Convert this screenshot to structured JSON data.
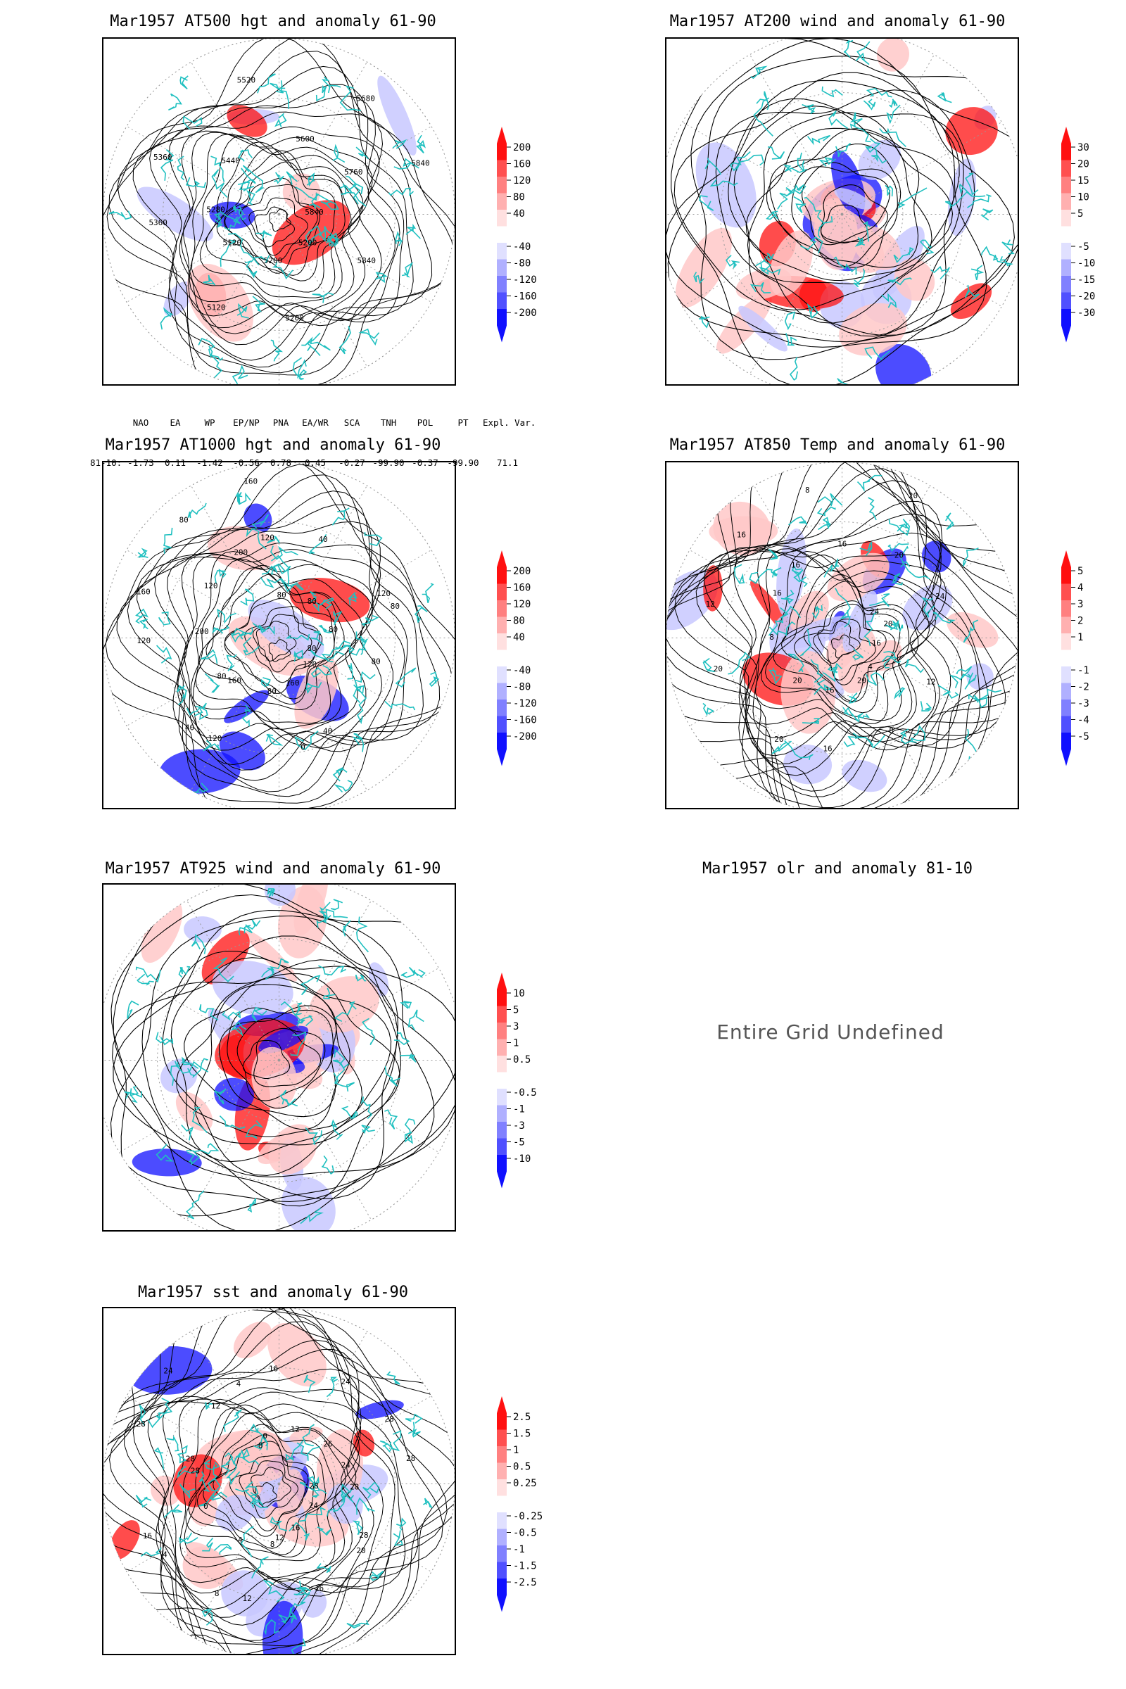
{
  "panels": [
    {
      "id": "p500",
      "title": "Mar1957 AT500 hgt and anomaly 61-90",
      "type": "hgt",
      "labels": [
        "5840",
        "5840",
        "5200",
        "5200",
        "5200",
        "5120",
        "5120",
        "5360",
        "5280",
        "5360",
        "5440",
        "5520",
        "5600",
        "5680",
        "5760",
        "5840"
      ],
      "colorbar": [
        "200",
        "160",
        "120",
        "80",
        "40",
        "-40",
        "-80",
        "-120",
        "-160",
        "-200"
      ]
    },
    {
      "id": "p200",
      "title": "Mar1957 AT200 wind and anomaly 61-90",
      "type": "wind",
      "labels": [],
      "colorbar": [
        "30",
        "20",
        "15",
        "10",
        "5",
        "-5",
        "-10",
        "-15",
        "-20",
        "-30"
      ]
    },
    {
      "id": "p1000",
      "title": "Mar1957 AT1000 hgt and anomaly 61-90",
      "type": "hgt",
      "labels": [
        "80",
        "80",
        "120",
        "40",
        "160",
        "0",
        "80",
        "120",
        "160",
        "40",
        "80",
        "120",
        "200",
        "160",
        "120",
        "80",
        "200",
        "160",
        "120",
        "80",
        "40",
        "80",
        "120",
        "80",
        "80"
      ],
      "colorbar": [
        "200",
        "160",
        "120",
        "80",
        "40",
        "-40",
        "-80",
        "-120",
        "-160",
        "-200"
      ]
    },
    {
      "id": "p850",
      "title": "Mar1957 AT850 Temp and anomaly 61-90",
      "type": "temp",
      "labels": [
        "16",
        "12",
        "4",
        "8",
        "20",
        "16",
        "16",
        "20",
        "20",
        "20",
        "8",
        "12",
        "16",
        "16",
        "16",
        "8",
        "16",
        "20",
        "20",
        "24",
        "24",
        "20"
      ],
      "colorbar": [
        "5",
        "4",
        "3",
        "2",
        "1",
        "-1",
        "-2",
        "-3",
        "-4",
        "-5"
      ]
    },
    {
      "id": "p925",
      "title": "Mar1957 AT925 wind and anomaly 61-90",
      "type": "wind",
      "labels": [],
      "colorbar": [
        "10",
        "5",
        "3",
        "1",
        "0.5",
        "-0.5",
        "-1",
        "-3",
        "-5",
        "-10"
      ]
    },
    {
      "id": "pSST",
      "title": "Mar1957 sst and anomaly 61-90",
      "type": "sst",
      "labels": [
        "28",
        "28",
        "24",
        "20",
        "16",
        "16",
        "12",
        "12",
        "8",
        "8",
        "4",
        "4",
        "0",
        "16",
        "28",
        "28",
        "28",
        "24",
        "12",
        "8",
        "4",
        "0",
        "16",
        "12",
        "24",
        "26",
        "28",
        "24",
        "28",
        "28"
      ],
      "colorbar": [
        "2.5",
        "1.5",
        "1",
        "0.5",
        "0.25",
        "-0.25",
        "-0.5",
        "-1",
        "-1.5",
        "-2.5"
      ]
    }
  ],
  "olr": {
    "title": "Mar1957 olr and anomaly 81-10",
    "message": "Entire Grid Undefined"
  },
  "teleconnection": {
    "headers": [
      "NAO",
      "EA",
      "WP",
      "EP/NP",
      "PNA",
      "EA/WR",
      "SCA",
      "TNH",
      "POL",
      "PT",
      "Expl. Var."
    ],
    "row_label": "81-10:",
    "values": [
      "-1.73",
      "0.11",
      "-1.42",
      "-0.56",
      "0.78",
      "0.45",
      "-0.27",
      "-99.90",
      "-0.37",
      "-99.90",
      "71.1"
    ]
  },
  "colors": {
    "coast": "#20c0c0",
    "contour": "#000000",
    "pos_strong": "#ff1010",
    "pos_light": "#ffc8c8",
    "neg_strong": "#1010ff",
    "neg_light": "#c8c8ff",
    "grid": "#999999"
  }
}
